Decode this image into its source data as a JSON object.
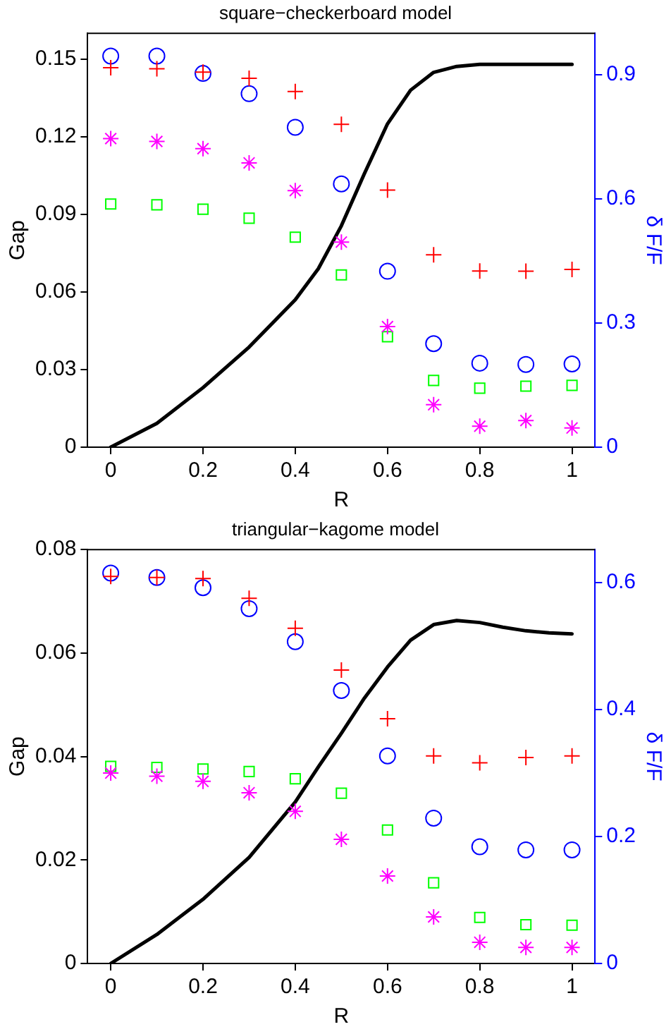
{
  "chart_data": [
    {
      "type": "scatter",
      "title": "square−checkerboard model",
      "xlabel": "R",
      "ylabel": "Gap",
      "y2label": "δ F/F",
      "x": [
        0,
        0.1,
        0.2,
        0.3,
        0.4,
        0.5,
        0.6,
        0.7,
        0.8,
        0.9,
        1
      ],
      "xlim": [
        -0.05,
        1.05
      ],
      "xticks": [
        0,
        0.2,
        0.4,
        0.6,
        0.8,
        1
      ],
      "ylim": [
        0,
        0.16
      ],
      "yticks": [
        0,
        0.03,
        0.06,
        0.09,
        0.12,
        0.15
      ],
      "y2lim": [
        0,
        1
      ],
      "y2ticks": [
        0,
        0.3,
        0.6,
        0.9
      ],
      "grid": false,
      "legend": false,
      "series": [
        {
          "color": "#ff0000",
          "marker": "cross",
          "values": [
            0.1467,
            0.1463,
            0.145,
            0.1426,
            0.1375,
            0.1248,
            0.0994,
            0.0744,
            0.0681,
            0.068,
            0.0687
          ]
        },
        {
          "color": "#ff00ff",
          "values": [
            0.1193,
            0.1182,
            0.1154,
            0.1099,
            0.0992,
            0.0793,
            0.0466,
            0.0164,
            0.0081,
            0.0103,
            0.0074
          ]
        },
        {
          "color": "#00ff00",
          "marker": "square",
          "values": [
            0.094,
            0.0937,
            0.092,
            0.0885,
            0.0812,
            0.0666,
            0.0427,
            0.0258,
            0.0228,
            0.0236,
            0.0239
          ]
        },
        {
          "color": "#0000ff",
          "marker": "circle",
          "axis": "y2",
          "values": [
            0.945,
            0.945,
            0.903,
            0.854,
            0.773,
            0.636,
            0.425,
            0.25,
            0.203,
            0.2,
            0.201
          ]
        },
        {
          "type": "line",
          "color": "#000000",
          "marker": "none",
          "line_style": "solid",
          "x": [
            0,
            0.1,
            0.2,
            0.3,
            0.4,
            0.45,
            0.5,
            0.55,
            0.6,
            0.65,
            0.7,
            0.75,
            0.8,
            1
          ],
          "values": [
            0,
            0.0092,
            0.023,
            0.0387,
            0.057,
            0.069,
            0.0856,
            0.1058,
            0.125,
            0.138,
            0.1449,
            0.1472,
            0.148,
            0.148
          ]
        }
      ]
    },
    {
      "type": "scatter",
      "title": "triangular−kagome model",
      "xlabel": "R",
      "ylabel": "Gap",
      "y2label": "δ F/F",
      "x": [
        0,
        0.1,
        0.2,
        0.3,
        0.4,
        0.5,
        0.6,
        0.7,
        0.8,
        0.9,
        1
      ],
      "xlim": [
        -0.05,
        1.05
      ],
      "xticks": [
        0,
        0.2,
        0.4,
        0.6,
        0.8,
        1
      ],
      "ylim": [
        0,
        0.08
      ],
      "yticks": [
        0,
        0.02,
        0.04,
        0.06,
        0.08
      ],
      "y2lim": [
        0,
        0.652
      ],
      "y2ticks": [
        0,
        0.2,
        0.4,
        0.6
      ],
      "grid": false,
      "legend": false,
      "series": [
        {
          "color": "#ff0000",
          "marker": "cross",
          "values": [
            0.0748,
            0.0746,
            0.0744,
            0.0706,
            0.0648,
            0.0567,
            0.0473,
            0.0401,
            0.0388,
            0.0398,
            0.0401
          ]
        },
        {
          "color": "#ff00ff",
          "values": [
            0.0368,
            0.0362,
            0.0352,
            0.033,
            0.0294,
            0.024,
            0.0169,
            0.009,
            0.0041,
            0.0031,
            0.0031
          ]
        },
        {
          "color": "#00ff00",
          "marker": "square",
          "values": [
            0.0381,
            0.0379,
            0.0376,
            0.0371,
            0.0357,
            0.0329,
            0.0258,
            0.0156,
            0.0089,
            0.0075,
            0.0074
          ]
        },
        {
          "color": "#0000ff",
          "marker": "circle",
          "axis": "y2",
          "values": [
            0.615,
            0.608,
            0.592,
            0.559,
            0.507,
            0.43,
            0.327,
            0.229,
            0.184,
            0.179,
            0.179
          ]
        },
        {
          "type": "line",
          "color": "#000000",
          "marker": "none",
          "line_style": "solid",
          "x": [
            0,
            0.1,
            0.2,
            0.3,
            0.4,
            0.45,
            0.5,
            0.55,
            0.6,
            0.65,
            0.7,
            0.75,
            0.8,
            0.85,
            0.9,
            0.95,
            1
          ],
          "values": [
            0,
            0.0056,
            0.0124,
            0.0205,
            0.0312,
            0.038,
            0.0445,
            0.0513,
            0.0573,
            0.0625,
            0.0655,
            0.0663,
            0.0659,
            0.065,
            0.0643,
            0.0639,
            0.0637
          ]
        }
      ]
    }
  ]
}
